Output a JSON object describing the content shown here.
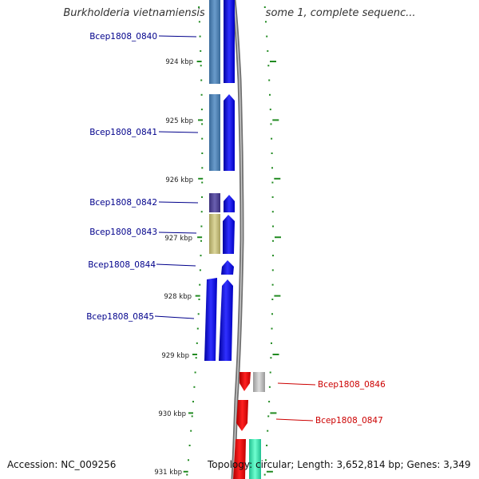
{
  "title": "Burkholderia vietnamiensis G4 chromosome 1, complete sequenc...",
  "footer": {
    "accession": "Accession: NC_009256",
    "topology": "Topology: circular; Length: 3,652,814 bp; Genes: 3,349"
  },
  "colors": {
    "forward_strand": "#0000ee",
    "reverse_strand": "#ee0000",
    "forward_label": "#00008b",
    "reverse_label": "#cc0000",
    "tick": "#228b22",
    "backbone": "#777777",
    "cog_steelblue": "#4a7fb5",
    "cog_slate": "#4a3f8f",
    "cog_khaki": "#c7c07a",
    "cog_gray": "#b5b5b5",
    "cog_aquamarine": "#2ee8a8"
  },
  "scale_labels": [
    "924 kbp",
    "925 kbp",
    "926 kbp",
    "927 kbp",
    "928 kbp",
    "929 kbp",
    "930 kbp",
    "931 kbp"
  ],
  "genes": [
    {
      "label": "Bcep1808_0840",
      "strand": "forward",
      "cog_color": "#4a7fb5"
    },
    {
      "label": "Bcep1808_0841",
      "strand": "forward",
      "cog_color": "#4a7fb5"
    },
    {
      "label": "Bcep1808_0842",
      "strand": "forward",
      "cog_color": "#4a3f8f"
    },
    {
      "label": "Bcep1808_0843",
      "strand": "forward",
      "cog_color": "#c7c07a"
    },
    {
      "label": "Bcep1808_0844",
      "strand": "forward",
      "cog_color": ""
    },
    {
      "label": "Bcep1808_0845",
      "strand": "forward",
      "cog_color": "#0000ee"
    },
    {
      "label": "Bcep1808_0846",
      "strand": "reverse",
      "cog_color": "#b5b5b5"
    },
    {
      "label": "Bcep1808_0847",
      "strand": "reverse",
      "cog_color": ""
    },
    {
      "label": "",
      "strand": "reverse",
      "cog_color": "#2ee8a8"
    }
  ]
}
